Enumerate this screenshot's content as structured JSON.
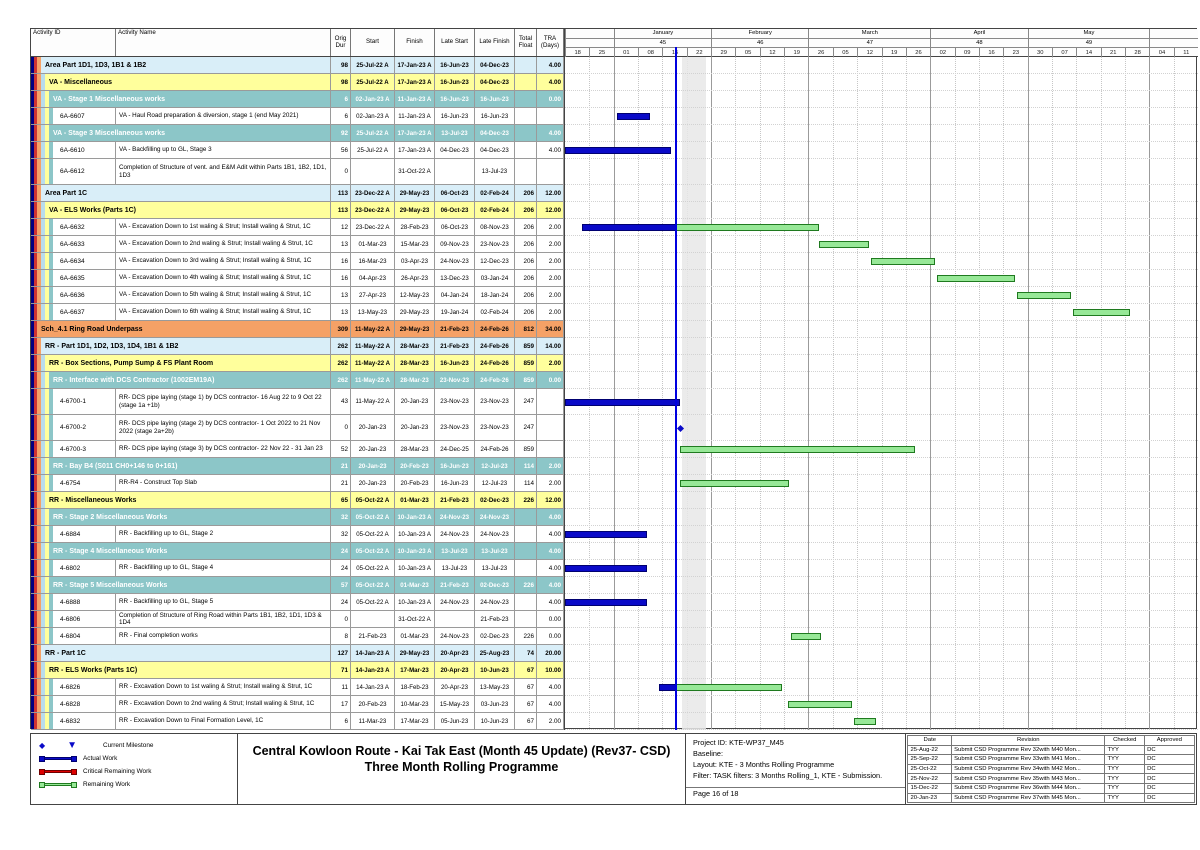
{
  "title": {
    "line1": "Central Kowloon Route - Kai Tak East (Month 45 Update) (Rev37- CSD)",
    "line2": "Three Month Rolling Programme"
  },
  "table": {
    "columns": [
      "Activity ID",
      "Activity Name",
      "Orig Dur",
      "Start",
      "Finish",
      "Late Start",
      "Late Finish",
      "Total Float",
      "TRA (Days)"
    ]
  },
  "chart_data": {
    "type": "gantt",
    "chart_start_date": "18-Dec-22",
    "week_days": 7,
    "data_date_day": 32,
    "spotlight_days": [
      33.5,
      40.5
    ],
    "timescale": {
      "months": [
        {
          "label": "",
          "num": "",
          "cells": 2
        },
        {
          "label": "January",
          "num": "45",
          "cells": 4
        },
        {
          "label": "February",
          "num": "46",
          "cells": 4
        },
        {
          "label": "March",
          "num": "47",
          "cells": 5
        },
        {
          "label": "April",
          "num": "48",
          "cells": 4
        },
        {
          "label": "May",
          "num": "49",
          "cells": 5
        },
        {
          "label": "",
          "num": "",
          "cells": 2
        }
      ],
      "ticks": [
        "18",
        "25",
        "01",
        "08",
        "15",
        "22",
        "29",
        "05",
        "12",
        "19",
        "26",
        "05",
        "12",
        "19",
        "26",
        "02",
        "09",
        "16",
        "23",
        "30",
        "07",
        "14",
        "21",
        "28",
        "04",
        "11"
      ]
    },
    "rows": [
      {
        "level": 1,
        "name": "Area Part 1D1, 1D3, 1B1 & 1B2",
        "dur": "98",
        "start": "25-Jul-22 A",
        "finish": "17-Jan-23 A",
        "ls": "16-Jun-23",
        "lf": "04-Dec-23",
        "tf": "",
        "tra": "4.00",
        "bars": []
      },
      {
        "level": 2,
        "name": "VA - Miscellaneous",
        "dur": "98",
        "start": "25-Jul-22 A",
        "finish": "17-Jan-23 A",
        "ls": "16-Jun-23",
        "lf": "04-Dec-23",
        "tf": "",
        "tra": "4.00",
        "bars": []
      },
      {
        "level": 3,
        "name": "VA - Stage 1 Miscellaneous works",
        "dur": "6",
        "start": "02-Jan-23 A",
        "finish": "11-Jan-23 A",
        "ls": "16-Jun-23",
        "lf": "16-Jun-23",
        "tf": "",
        "tra": "0.00",
        "bars": []
      },
      {
        "level": 4,
        "id": "6A-6607",
        "name": "VA - Haul Road preparation & diversion, stage 1 (end May 2021)",
        "dur": "6",
        "start": "02-Jan-23 A",
        "finish": "11-Jan-23 A",
        "ls": "16-Jun-23",
        "lf": "16-Jun-23",
        "tf": "",
        "tra": "",
        "bars": [
          [
            "a",
            15,
            24.5
          ]
        ]
      },
      {
        "level": 3,
        "name": "VA - Stage 3 Miscellaneous works",
        "dur": "92",
        "start": "25-Jul-22 A",
        "finish": "17-Jan-23 A",
        "ls": "13-Jul-23",
        "lf": "04-Dec-23",
        "tf": "",
        "tra": "4.00",
        "bars": []
      },
      {
        "level": 4,
        "id": "6A-6610",
        "name": "VA - Backfilling up to GL, Stage 3",
        "dur": "56",
        "start": "25-Jul-22 A",
        "finish": "17-Jan-23 A",
        "ls": "04-Dec-23",
        "lf": "04-Dec-23",
        "tf": "",
        "tra": "4.00",
        "bars": [
          [
            "a",
            0,
            30.5
          ]
        ]
      },
      {
        "level": 4,
        "id": "6A-6612",
        "name": "Completion of Structure of vent. and E&M Adit within Parts 1B1, 1B2, 1D1, 1D3",
        "dur": "0",
        "start": "",
        "finish": "31-Oct-22 A",
        "ls": "",
        "lf": "13-Jul-23",
        "tf": "",
        "tra": "",
        "h2": true,
        "bars": []
      },
      {
        "level": 1,
        "name": "Area Part 1C",
        "dur": "113",
        "start": "23-Dec-22 A",
        "finish": "29-May-23",
        "ls": "06-Oct-23",
        "lf": "02-Feb-24",
        "tf": "206",
        "tra": "12.00",
        "bars": []
      },
      {
        "level": 2,
        "name": "VA - ELS Works (Parts 1C)",
        "dur": "113",
        "start": "23-Dec-22 A",
        "finish": "29-May-23",
        "ls": "06-Oct-23",
        "lf": "02-Feb-24",
        "tf": "206",
        "tra": "12.00",
        "bars": []
      },
      {
        "level": 4,
        "id": "6A-6632",
        "name": "VA - Excavation Down to 1st waling & Strut; Install waling & Strut, 1C",
        "dur": "12",
        "start": "23-Dec-22 A",
        "finish": "28-Feb-23",
        "ls": "06-Oct-23",
        "lf": "08-Nov-23",
        "tf": "206",
        "tra": "2.00",
        "bars": [
          [
            "a",
            5,
            32
          ],
          [
            "r",
            32,
            73
          ]
        ]
      },
      {
        "level": 4,
        "id": "6A-6633",
        "name": "VA - Excavation Down to 2nd waling & Strut; Install waling & Strut, 1C",
        "dur": "13",
        "start": "01-Mar-23",
        "finish": "15-Mar-23",
        "ls": "09-Nov-23",
        "lf": "23-Nov-23",
        "tf": "206",
        "tra": "2.00",
        "bars": [
          [
            "r",
            73,
            87.5
          ]
        ]
      },
      {
        "level": 4,
        "id": "6A-6634",
        "name": "VA - Excavation Down to 3rd waling & Strut; Install waling & Strut, 1C",
        "dur": "16",
        "start": "16-Mar-23",
        "finish": "03-Apr-23",
        "ls": "24-Nov-23",
        "lf": "12-Dec-23",
        "tf": "206",
        "tra": "2.00",
        "bars": [
          [
            "r",
            88,
            106.5
          ]
        ]
      },
      {
        "level": 4,
        "id": "6A-6635",
        "name": "VA - Excavation Down to 4th waling & Strut; Install waling & Strut, 1C",
        "dur": "16",
        "start": "04-Apr-23",
        "finish": "26-Apr-23",
        "ls": "13-Dec-23",
        "lf": "03-Jan-24",
        "tf": "206",
        "tra": "2.00",
        "bars": [
          [
            "r",
            107,
            129.5
          ]
        ]
      },
      {
        "level": 4,
        "id": "6A-6636",
        "name": "VA - Excavation Down to 5th waling & Strut; Install waling & Strut, 1C",
        "dur": "13",
        "start": "27-Apr-23",
        "finish": "12-May-23",
        "ls": "04-Jan-24",
        "lf": "18-Jan-24",
        "tf": "206",
        "tra": "2.00",
        "bars": [
          [
            "r",
            130,
            145.5
          ]
        ]
      },
      {
        "level": 4,
        "id": "6A-6637",
        "name": "VA - Excavation Down to 6th waling & Strut; Install waling & Strut, 1C",
        "dur": "13",
        "start": "13-May-23",
        "finish": "29-May-23",
        "ls": "19-Jan-24",
        "lf": "02-Feb-24",
        "tf": "206",
        "tra": "2.00",
        "bars": [
          [
            "r",
            146,
            162.5
          ]
        ]
      },
      {
        "level": 0,
        "name": "Sch_4.1 Ring Road Underpass",
        "dur": "309",
        "start": "11-May-22 A",
        "finish": "29-May-23",
        "ls": "21-Feb-23",
        "lf": "24-Feb-26",
        "tf": "812",
        "tra": "34.00",
        "bars": []
      },
      {
        "level": 1,
        "name": "RR - Part 1D1, 1D2, 1D3, 1D4, 1B1 & 1B2",
        "dur": "262",
        "start": "11-May-22 A",
        "finish": "28-Mar-23",
        "ls": "21-Feb-23",
        "lf": "24-Feb-26",
        "tf": "859",
        "tra": "14.00",
        "bars": []
      },
      {
        "level": 2,
        "name": "RR - Box Sections, Pump Sump & FS Plant Room",
        "dur": "262",
        "start": "11-May-22 A",
        "finish": "28-Mar-23",
        "ls": "16-Jun-23",
        "lf": "24-Feb-26",
        "tf": "859",
        "tra": "2.00",
        "bars": []
      },
      {
        "level": 3,
        "name": "RR - Interface with DCS Contractor (1002EM19A)",
        "dur": "262",
        "start": "11-May-22 A",
        "finish": "28-Mar-23",
        "ls": "23-Nov-23",
        "lf": "24-Feb-26",
        "tf": "859",
        "tra": "0.00",
        "bars": []
      },
      {
        "level": 4,
        "id": "4-6700-1",
        "name": "RR- DCS pipe laying (stage 1) by DCS contractor- 16 Aug 22 to 9 Oct 22 (stage 1a +1b)",
        "dur": "43",
        "start": "11-May-22 A",
        "finish": "20-Jan-23",
        "ls": "23-Nov-23",
        "lf": "23-Nov-23",
        "tf": "247",
        "tra": "",
        "h2": true,
        "bars": [
          [
            "a",
            0,
            33
          ]
        ]
      },
      {
        "level": 4,
        "id": "4-6700-2",
        "name": "RR- DCS pipe laying (stage 2) by DCS contractor- 1 Oct 2022 to 21 Nov 2022 (stage 2a+2b)",
        "dur": "0",
        "start": "20-Jan-23",
        "finish": "20-Jan-23",
        "ls": "23-Nov-23",
        "lf": "23-Nov-23",
        "tf": "247",
        "tra": "",
        "h2": true,
        "bars": [
          [
            "m",
            33,
            33
          ]
        ]
      },
      {
        "level": 4,
        "id": "4-6700-3",
        "name": "RR- DCS pipe laying (stage 3) by DCS contractor- 22 Nov 22 - 31 Jan 23",
        "dur": "52",
        "start": "20-Jan-23",
        "finish": "28-Mar-23",
        "ls": "24-Dec-25",
        "lf": "24-Feb-26",
        "tf": "859",
        "tra": "",
        "bars": [
          [
            "r",
            33,
            100.5
          ]
        ]
      },
      {
        "level": 3,
        "name": "RR - Bay B4 (S011 CH0+146 to 0+161)",
        "dur": "21",
        "start": "20-Jan-23",
        "finish": "20-Feb-23",
        "ls": "16-Jun-23",
        "lf": "12-Jul-23",
        "tf": "114",
        "tra": "2.00",
        "bars": []
      },
      {
        "level": 4,
        "id": "4-6754",
        "name": "RR-R4 - Construct Top Slab",
        "dur": "21",
        "start": "20-Jan-23",
        "finish": "20-Feb-23",
        "ls": "16-Jun-23",
        "lf": "12-Jul-23",
        "tf": "114",
        "tra": "2.00",
        "bars": [
          [
            "r",
            33,
            64.5
          ]
        ]
      },
      {
        "level": 2,
        "name": "RR - Miscellaneous Works",
        "dur": "65",
        "start": "05-Oct-22 A",
        "finish": "01-Mar-23",
        "ls": "21-Feb-23",
        "lf": "02-Dec-23",
        "tf": "226",
        "tra": "12.00",
        "bars": []
      },
      {
        "level": 3,
        "name": "RR - Stage 2 Miscellaneous Works",
        "dur": "32",
        "start": "05-Oct-22 A",
        "finish": "10-Jan-23 A",
        "ls": "24-Nov-23",
        "lf": "24-Nov-23",
        "tf": "",
        "tra": "4.00",
        "bars": []
      },
      {
        "level": 4,
        "id": "4-6884",
        "name": "RR - Backfilling up to GL, Stage 2",
        "dur": "32",
        "start": "05-Oct-22 A",
        "finish": "10-Jan-23 A",
        "ls": "24-Nov-23",
        "lf": "24-Nov-23",
        "tf": "",
        "tra": "4.00",
        "bars": [
          [
            "a",
            0,
            23.5
          ]
        ]
      },
      {
        "level": 3,
        "name": "RR - Stage 4 Miscellaneous Works",
        "dur": "24",
        "start": "05-Oct-22 A",
        "finish": "10-Jan-23 A",
        "ls": "13-Jul-23",
        "lf": "13-Jul-23",
        "tf": "",
        "tra": "4.00",
        "bars": []
      },
      {
        "level": 4,
        "id": "4-6802",
        "name": "RR - Backfilling up to GL, Stage 4",
        "dur": "24",
        "start": "05-Oct-22 A",
        "finish": "10-Jan-23 A",
        "ls": "13-Jul-23",
        "lf": "13-Jul-23",
        "tf": "",
        "tra": "4.00",
        "bars": [
          [
            "a",
            0,
            23.5
          ]
        ]
      },
      {
        "level": 3,
        "name": "RR - Stage 5 Miscellaneous Works",
        "dur": "57",
        "start": "05-Oct-22 A",
        "finish": "01-Mar-23",
        "ls": "21-Feb-23",
        "lf": "02-Dec-23",
        "tf": "226",
        "tra": "4.00",
        "bars": []
      },
      {
        "level": 4,
        "id": "4-6888",
        "name": "RR - Backfilling up to GL, Stage 5",
        "dur": "24",
        "start": "05-Oct-22 A",
        "finish": "10-Jan-23 A",
        "ls": "24-Nov-23",
        "lf": "24-Nov-23",
        "tf": "",
        "tra": "4.00",
        "bars": [
          [
            "a",
            0,
            23.5
          ]
        ]
      },
      {
        "level": 4,
        "id": "4-6806",
        "name": "Completion of Structure of Ring Road within Parts 1B1, 1B2, 1D1, 1D3 & 1D4",
        "dur": "0",
        "start": "",
        "finish": "31-Oct-22 A",
        "ls": "",
        "lf": "21-Feb-23",
        "tf": "",
        "tra": "0.00",
        "bars": []
      },
      {
        "level": 4,
        "id": "4-6804",
        "name": "RR - Final completion works",
        "dur": "8",
        "start": "21-Feb-23",
        "finish": "01-Mar-23",
        "ls": "24-Nov-23",
        "lf": "02-Dec-23",
        "tf": "226",
        "tra": "0.00",
        "bars": [
          [
            "r",
            65,
            73.5
          ]
        ]
      },
      {
        "level": 1,
        "name": "RR - Part 1C",
        "dur": "127",
        "start": "14-Jan-23 A",
        "finish": "29-May-23",
        "ls": "20-Apr-23",
        "lf": "25-Aug-23",
        "tf": "74",
        "tra": "20.00",
        "bars": []
      },
      {
        "level": 2,
        "name": "RR - ELS Works (Parts 1C)",
        "dur": "71",
        "start": "14-Jan-23 A",
        "finish": "17-Mar-23",
        "ls": "20-Apr-23",
        "lf": "10-Jun-23",
        "tf": "67",
        "tra": "10.00",
        "bars": []
      },
      {
        "level": 4,
        "id": "4-6826",
        "name": "RR - Excavation Down to 1st waling & Strut; Install waling & Strut, 1C",
        "dur": "11",
        "start": "14-Jan-23 A",
        "finish": "18-Feb-23",
        "ls": "20-Apr-23",
        "lf": "13-May-23",
        "tf": "67",
        "tra": "4.00",
        "bars": [
          [
            "a",
            27,
            32
          ],
          [
            "r",
            32,
            62.5
          ]
        ]
      },
      {
        "level": 4,
        "id": "4-6828",
        "name": "RR - Excavation Down to 2nd waling & Strut; Install waling & Strut, 1C",
        "dur": "17",
        "start": "20-Feb-23",
        "finish": "10-Mar-23",
        "ls": "15-May-23",
        "lf": "03-Jun-23",
        "tf": "67",
        "tra": "4.00",
        "bars": [
          [
            "r",
            64,
            82.5
          ]
        ]
      },
      {
        "level": 4,
        "id": "4-6832",
        "name": "RR - Excavation Down to Final Formation Level, 1C",
        "dur": "6",
        "start": "11-Mar-23",
        "finish": "17-Mar-23",
        "ls": "05-Jun-23",
        "lf": "10-Jun-23",
        "tf": "67",
        "tra": "2.00",
        "bars": [
          [
            "r",
            83,
            89.5
          ]
        ]
      }
    ]
  },
  "legend": [
    {
      "label": "Current Milestone",
      "marker": "milestone"
    },
    {
      "label": "Actual Work",
      "marker": "bar-blue"
    },
    {
      "label": "Critical Remaining Work",
      "marker": "bar-red"
    },
    {
      "label": "Remaining Work",
      "marker": "bar-green"
    }
  ],
  "project_info": {
    "lines": [
      "Project ID: KTE-WP37_M45",
      "Baseline:",
      "Layout: KTE - 3 Months Rolling Programme",
      "Filter: TASK filters: 3 Months Rolling_1, KTE - Submission."
    ],
    "page": "Page 16 of 18"
  },
  "revision_table": {
    "columns": [
      "Date",
      "Revision",
      "Checked",
      "Approved"
    ],
    "rows": [
      [
        "25-Aug-22",
        "Submit CSD Programme Rev 32with M40 Mon...",
        "TYY",
        "DC"
      ],
      [
        "25-Sep-22",
        "Submit CSD Programme Rev 33with M41 Mon...",
        "TYY",
        "DC"
      ],
      [
        "25-Oct-22",
        "Submit CSD Programme Rev 34with M42 Mon...",
        "TYY",
        "DC"
      ],
      [
        "25-Nov-22",
        "Submit CSD Programme Rev 35with M43 Mon...",
        "TYY",
        "DC"
      ],
      [
        "15-Dec-22",
        "Submit CSD Programme Rev 36with M44 Mon...",
        "TYY",
        "DC"
      ],
      [
        "20-Jan-23",
        "Submit CSD Programme Rev 37with M45 Mon...",
        "TYY",
        "DC"
      ]
    ]
  },
  "colors": {
    "band_orange": "#f5a166",
    "band_blue": "#d9eef8",
    "band_yellow": "#ffff9c",
    "band_teal": "#8cc6c8",
    "row_white": "#ffffff",
    "actual_work": "#0a0ac8",
    "critical_work": "#dd0000",
    "remaining_fill": "#97e897",
    "remaining_border": "#1f7a1f",
    "milestone": "#0a0ac8",
    "data_date_line": "#0000e0",
    "spotlight": "#e7e7e7",
    "gutter_stripes": [
      "#000080",
      "#cc3333",
      "#f5a166",
      "#b9dcec",
      "#ffff9c",
      "#8cc6c8"
    ]
  }
}
